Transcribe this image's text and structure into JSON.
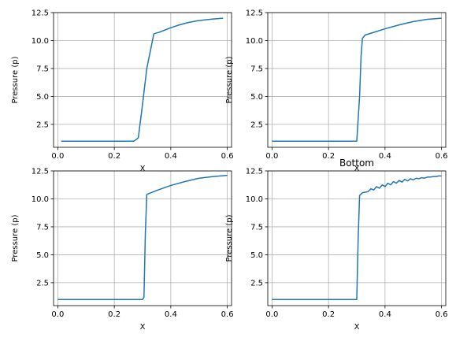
{
  "style": {
    "line_color": "#1f77b4",
    "grid_color": "#b0b0b0",
    "axis_color": "#000000"
  },
  "chart_data": [
    {
      "type": "line",
      "title": "",
      "xlabel": "X",
      "ylabel": "Pressure (p)",
      "xlim": [
        -0.015,
        0.615
      ],
      "ylim": [
        0.45,
        12.5
      ],
      "xticks": [
        0.0,
        0.2,
        0.4,
        0.6
      ],
      "xtick_labels": [
        "0.0",
        "0.2",
        "0.4",
        "0.6"
      ],
      "yticks": [
        2.5,
        5.0,
        7.5,
        10.0,
        12.5
      ],
      "ytick_labels": [
        "2.5",
        "5.0",
        "7.5",
        "10.0",
        "12.5"
      ],
      "grid": true,
      "series": [
        {
          "x": [
            0.012,
            0.05,
            0.1,
            0.15,
            0.2,
            0.25,
            0.27,
            0.285,
            0.3,
            0.315,
            0.34,
            0.36,
            0.38,
            0.4,
            0.43,
            0.46,
            0.49,
            0.52,
            0.55,
            0.585
          ],
          "y": [
            1.0,
            1.0,
            1.0,
            1.0,
            1.0,
            1.0,
            1.0,
            1.3,
            4.3,
            7.5,
            10.6,
            10.75,
            10.95,
            11.15,
            11.4,
            11.6,
            11.75,
            11.85,
            11.93,
            12.0
          ]
        }
      ]
    },
    {
      "type": "line",
      "title": "",
      "xlabel": "X",
      "ylabel": "Pressure (p)",
      "xlim": [
        -0.015,
        0.615
      ],
      "ylim": [
        0.45,
        12.5
      ],
      "xticks": [
        0.0,
        0.2,
        0.4,
        0.6
      ],
      "xtick_labels": [
        "0.0",
        "0.2",
        "0.4",
        "0.6"
      ],
      "yticks": [
        2.5,
        5.0,
        7.5,
        10.0,
        12.5
      ],
      "ytick_labels": [
        "2.5",
        "5.0",
        "7.5",
        "10.0",
        "12.5"
      ],
      "grid": true,
      "series": [
        {
          "x": [
            0.0,
            0.05,
            0.1,
            0.15,
            0.2,
            0.25,
            0.28,
            0.3,
            0.31,
            0.315,
            0.32,
            0.33,
            0.35,
            0.4,
            0.45,
            0.5,
            0.55,
            0.6
          ],
          "y": [
            1.0,
            1.0,
            1.0,
            1.0,
            1.0,
            1.0,
            1.0,
            1.0,
            5.0,
            8.5,
            10.2,
            10.5,
            10.65,
            11.05,
            11.4,
            11.7,
            11.9,
            12.0
          ]
        }
      ]
    },
    {
      "type": "line",
      "title": "",
      "xlabel": "X",
      "ylabel": "Pressure (p)",
      "xlim": [
        -0.015,
        0.615
      ],
      "ylim": [
        0.45,
        12.5
      ],
      "xticks": [
        0.0,
        0.2,
        0.4,
        0.6
      ],
      "xtick_labels": [
        "0.0",
        "0.2",
        "0.4",
        "0.6"
      ],
      "yticks": [
        2.5,
        5.0,
        7.5,
        10.0,
        12.5
      ],
      "ytick_labels": [
        "2.5",
        "5.0",
        "7.5",
        "10.0",
        "12.5"
      ],
      "grid": true,
      "series": [
        {
          "x": [
            0.0,
            0.05,
            0.1,
            0.15,
            0.2,
            0.25,
            0.29,
            0.3,
            0.305,
            0.31,
            0.315,
            0.33,
            0.35,
            0.4,
            0.45,
            0.5,
            0.55,
            0.6
          ],
          "y": [
            1.0,
            1.0,
            1.0,
            1.0,
            1.0,
            1.0,
            1.0,
            1.0,
            1.2,
            7.0,
            10.4,
            10.55,
            10.75,
            11.2,
            11.55,
            11.85,
            12.0,
            12.1
          ]
        }
      ]
    },
    {
      "type": "line",
      "title": "Bottom",
      "xlabel": "X",
      "ylabel": "Pressure (p)",
      "xlim": [
        -0.015,
        0.615
      ],
      "ylim": [
        0.45,
        12.5
      ],
      "xticks": [
        0.0,
        0.2,
        0.4,
        0.6
      ],
      "xtick_labels": [
        "0.0",
        "0.2",
        "0.4",
        "0.6"
      ],
      "yticks": [
        2.5,
        5.0,
        7.5,
        10.0,
        12.5
      ],
      "ytick_labels": [
        "2.5",
        "5.0",
        "7.5",
        "10.0",
        "12.5"
      ],
      "grid": true,
      "series": [
        {
          "x": [
            0.0,
            0.05,
            0.1,
            0.15,
            0.2,
            0.25,
            0.3,
            0.305,
            0.31,
            0.32,
            0.33,
            0.34,
            0.35,
            0.36,
            0.37,
            0.38,
            0.39,
            0.4,
            0.41,
            0.42,
            0.43,
            0.44,
            0.45,
            0.46,
            0.47,
            0.48,
            0.49,
            0.5,
            0.51,
            0.52,
            0.53,
            0.54,
            0.55,
            0.56,
            0.57,
            0.58,
            0.59,
            0.6
          ],
          "y": [
            1.0,
            1.0,
            1.0,
            1.0,
            1.0,
            1.0,
            1.0,
            6.5,
            10.3,
            10.55,
            10.6,
            10.65,
            10.9,
            10.8,
            11.1,
            10.95,
            11.25,
            11.1,
            11.4,
            11.25,
            11.55,
            11.4,
            11.65,
            11.5,
            11.75,
            11.6,
            11.8,
            11.7,
            11.85,
            11.8,
            11.9,
            11.85,
            11.95,
            11.95,
            12.0,
            12.0,
            12.05,
            12.05
          ]
        }
      ]
    }
  ]
}
